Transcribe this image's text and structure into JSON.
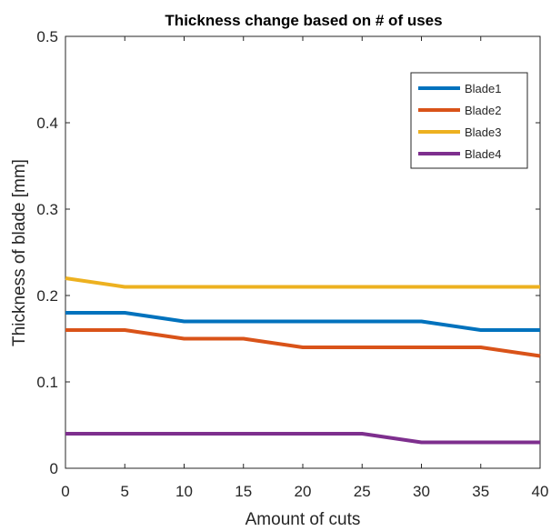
{
  "chart_data": {
    "type": "line",
    "title": "Thickness change based on # of uses",
    "xlabel": "Amount of cuts",
    "ylabel": "Thickness of blade [mm]",
    "xlim": [
      0,
      40
    ],
    "ylim": [
      0,
      0.5
    ],
    "x_ticks": [
      "0",
      "5",
      "10",
      "15",
      "20",
      "25",
      "30",
      "35",
      "40"
    ],
    "y_ticks": [
      "0",
      "0.1",
      "0.2",
      "0.3",
      "0.4",
      "0.5"
    ],
    "grid": false,
    "legend_position": "top-right",
    "x": [
      0,
      5,
      10,
      15,
      20,
      25,
      30,
      35,
      40
    ],
    "series": [
      {
        "name": "Blade1",
        "color": "#0072BD",
        "values": [
          0.18,
          0.18,
          0.17,
          0.17,
          0.17,
          0.17,
          0.17,
          0.16,
          0.16
        ]
      },
      {
        "name": "Blade2",
        "color": "#D95319",
        "values": [
          0.16,
          0.16,
          0.15,
          0.15,
          0.14,
          0.14,
          0.14,
          0.14,
          0.13
        ]
      },
      {
        "name": "Blade3",
        "color": "#EDB120",
        "values": [
          0.22,
          0.21,
          0.21,
          0.21,
          0.21,
          0.21,
          0.21,
          0.21,
          0.21
        ]
      },
      {
        "name": "Blade4",
        "color": "#7E2F8E",
        "values": [
          0.04,
          0.04,
          0.04,
          0.04,
          0.04,
          0.04,
          0.03,
          0.03,
          0.03
        ]
      }
    ]
  }
}
